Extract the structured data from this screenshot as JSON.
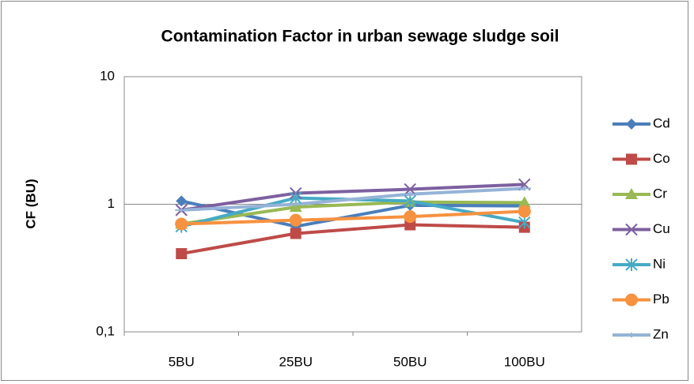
{
  "chart_data": {
    "type": "line",
    "title": "Contamination Factor in urban sewage sludge soil",
    "y_label": "CF (BU)",
    "categories": [
      "5BU",
      "25BU",
      "50BU",
      "100BU"
    ],
    "series": [
      {
        "name": "Cd",
        "color": "#4a7ebb",
        "marker": "diamond",
        "values": [
          1.06,
          0.67,
          0.98,
          0.97
        ]
      },
      {
        "name": "Co",
        "color": "#be4b48",
        "marker": "square",
        "values": [
          0.41,
          0.59,
          0.69,
          0.66
        ]
      },
      {
        "name": "Cr",
        "color": "#98b954",
        "marker": "triangle",
        "values": [
          0.7,
          0.95,
          1.04,
          1.03
        ]
      },
      {
        "name": "Cu",
        "color": "#7d60a0",
        "marker": "x",
        "values": [
          0.9,
          1.22,
          1.31,
          1.43
        ]
      },
      {
        "name": "Ni",
        "color": "#46aac5",
        "marker": "star",
        "values": [
          0.67,
          1.12,
          1.06,
          0.72
        ]
      },
      {
        "name": "Pb",
        "color": "#f69240",
        "marker": "circle",
        "values": [
          0.7,
          0.75,
          0.8,
          0.88
        ]
      },
      {
        "name": "Zn",
        "color": "#95b3d7",
        "marker": "plus",
        "values": [
          0.9,
          1.0,
          1.2,
          1.33
        ]
      }
    ],
    "log_scale": true,
    "ylim": [
      0.1,
      10
    ],
    "yticks": [
      {
        "value": 0.1,
        "label": "0,1"
      },
      1,
      10
    ],
    "grid": true,
    "legend": "right"
  }
}
